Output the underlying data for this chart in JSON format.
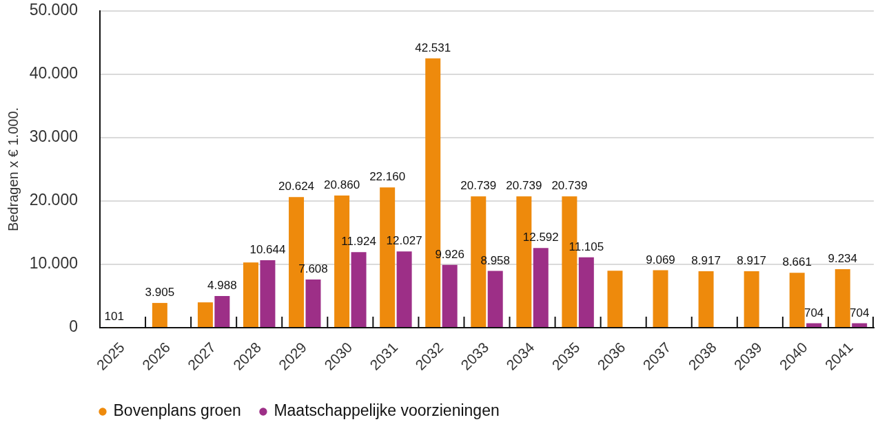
{
  "chart_data": {
    "type": "bar",
    "ylabel": "Bedragen x € 1.000.",
    "categories": [
      "2025",
      "2026",
      "2027",
      "2028",
      "2029",
      "2030",
      "2031",
      "2032",
      "2033",
      "2034",
      "2035",
      "2036",
      "2037",
      "2038",
      "2039",
      "2040",
      "2041"
    ],
    "series": [
      {
        "name": "Bovenplans groen",
        "color": "#ee8a0c",
        "values": [
          101,
          3905,
          4000,
          10300,
          20624,
          20860,
          22160,
          42531,
          20739,
          20739,
          20739,
          9000,
          9069,
          8917,
          8917,
          8661,
          9234
        ],
        "value_labels": [
          "101",
          "3.905",
          null,
          null,
          "20.624",
          "20.860",
          "22.160",
          "42.531",
          "20.739",
          "20.739",
          "20.739",
          null,
          "9.069",
          "8.917",
          "8.917",
          "8.661",
          "9.234"
        ]
      },
      {
        "name": "Maatschappelijke voorzieningen",
        "color": "#9d2f87",
        "values": [
          null,
          null,
          4988,
          10644,
          7608,
          11924,
          12027,
          9926,
          8958,
          12592,
          11105,
          null,
          null,
          null,
          null,
          704,
          704
        ],
        "value_labels": [
          null,
          null,
          "4.988",
          "10.644",
          "7.608",
          "11.924",
          "12.027",
          "9.926",
          "8.958",
          "12.592",
          "11.105",
          null,
          null,
          null,
          null,
          "704",
          "704"
        ]
      }
    ],
    "ylim": [
      0,
      50000
    ],
    "yticks": [
      0,
      {
        "value": 10000,
        "label": "10.000"
      },
      {
        "value": 20000,
        "label": "20.000"
      },
      {
        "value": 30000,
        "label": "30.000"
      },
      {
        "value": 40000,
        "label": "40.000"
      },
      {
        "value": 50000,
        "label": "50.000"
      }
    ],
    "grid": "y",
    "legend": "bottom left"
  }
}
